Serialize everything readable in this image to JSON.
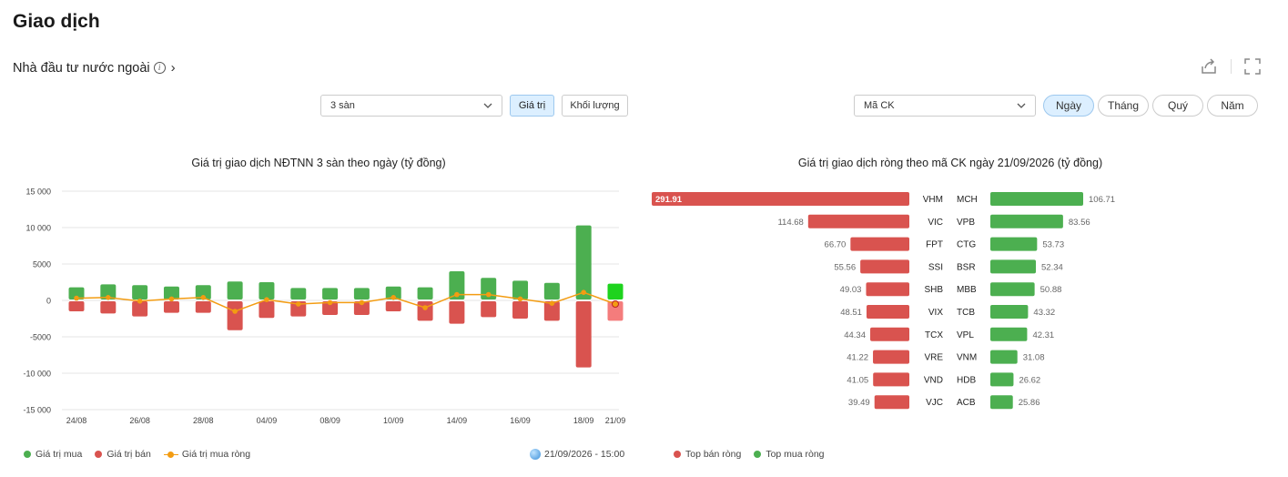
{
  "header": {
    "title": "Giao dịch"
  },
  "section": {
    "title": "Nhà đầu tư nước ngoài"
  },
  "controls": {
    "exchange_select": "3 sàn",
    "value_button": "Giá trị",
    "volume_button": "Khối lượng",
    "ticker_select": "Mã CK",
    "periods": [
      "Ngày",
      "Tháng",
      "Quý",
      "Năm"
    ],
    "active_period": "Ngày"
  },
  "colors": {
    "buy": "#4caf50",
    "sell": "#d9534f",
    "net": "#f39c12",
    "accent": "#dcefff"
  },
  "chart_data": [
    {
      "type": "bar",
      "title": "Giá trị giao dịch NĐTNN 3 sàn theo ngày (tỷ đồng)",
      "x": [
        "24/08",
        "25/08",
        "26/08",
        "27/08",
        "28/08",
        "31/08",
        "04/09",
        "07/09",
        "08/09",
        "09/09",
        "10/09",
        "11/09",
        "14/09",
        "15/09",
        "16/09",
        "17/09",
        "18/09",
        "21/09"
      ],
      "xtick_labels": [
        "24/08",
        "26/08",
        "28/08",
        "04/09",
        "08/09",
        "10/09",
        "14/09",
        "16/09",
        "18/09",
        "21/09"
      ],
      "yticks": [
        "15 000",
        "10 000",
        "5000",
        "0",
        "-5000",
        "-10 000",
        "-15 000"
      ],
      "ylim": [
        -15000,
        15000
      ],
      "series": [
        {
          "name": "Giá trị mua",
          "type": "bar",
          "values": [
            1800,
            2200,
            2100,
            1900,
            2100,
            2600,
            2500,
            1700,
            1700,
            1700,
            1900,
            1800,
            4000,
            3100,
            2700,
            2400,
            10300,
            2300
          ]
        },
        {
          "name": "Giá trị bán",
          "type": "bar",
          "values": [
            -1500,
            -1800,
            -2200,
            -1700,
            -1700,
            -4100,
            -2400,
            -2200,
            -2000,
            -2000,
            -1500,
            -2800,
            -3200,
            -2300,
            -2500,
            -2800,
            -9200,
            -2800
          ]
        },
        {
          "name": "Giá trị mua ròng",
          "type": "line",
          "values": [
            300,
            400,
            -100,
            200,
            400,
            -1500,
            100,
            -500,
            -300,
            -300,
            400,
            -1000,
            800,
            800,
            200,
            -400,
            1100,
            -500
          ]
        }
      ],
      "legend": [
        "Giá trị mua",
        "Giá trị bán",
        "Giá trị mua ròng"
      ],
      "legend_position": "bottom-left",
      "timestamp": "21/09/2026 - 15:00",
      "grid": true
    },
    {
      "type": "bar",
      "orientation": "horizontal",
      "title": "Giá trị giao dịch ròng theo mã CK ngày 21/09/2026 (tỷ đồng)",
      "sell": {
        "name": "Top bán ròng",
        "tickers": [
          "VHM",
          "VIC",
          "FPT",
          "SSI",
          "SHB",
          "VIX",
          "TCX",
          "VRE",
          "VND",
          "VJC"
        ],
        "labels": [
          "291.91",
          "114.68",
          "66.70",
          "55.56",
          "49.03",
          "48.51",
          "44.34",
          "41.22",
          "41.05",
          "39.49"
        ],
        "values": [
          291.91,
          114.68,
          66.7,
          55.56,
          49.03,
          48.51,
          44.34,
          41.22,
          41.05,
          39.49
        ]
      },
      "buy": {
        "name": "Top mua ròng",
        "tickers": [
          "MCH",
          "VPB",
          "CTG",
          "BSR",
          "MBB",
          "TCB",
          "VPL",
          "VNM",
          "HDB",
          "ACB"
        ],
        "labels": [
          "106.71",
          "83.56",
          "53.73",
          "52.34",
          "50.88",
          "43.32",
          "42.31",
          "31.08",
          "26.62",
          "25.86"
        ],
        "values": [
          106.71,
          83.56,
          53.73,
          52.34,
          50.88,
          43.32,
          42.31,
          31.08,
          26.62,
          25.86
        ]
      },
      "legend": [
        "Top bán ròng",
        "Top mua ròng"
      ],
      "legend_position": "bottom-left"
    }
  ]
}
